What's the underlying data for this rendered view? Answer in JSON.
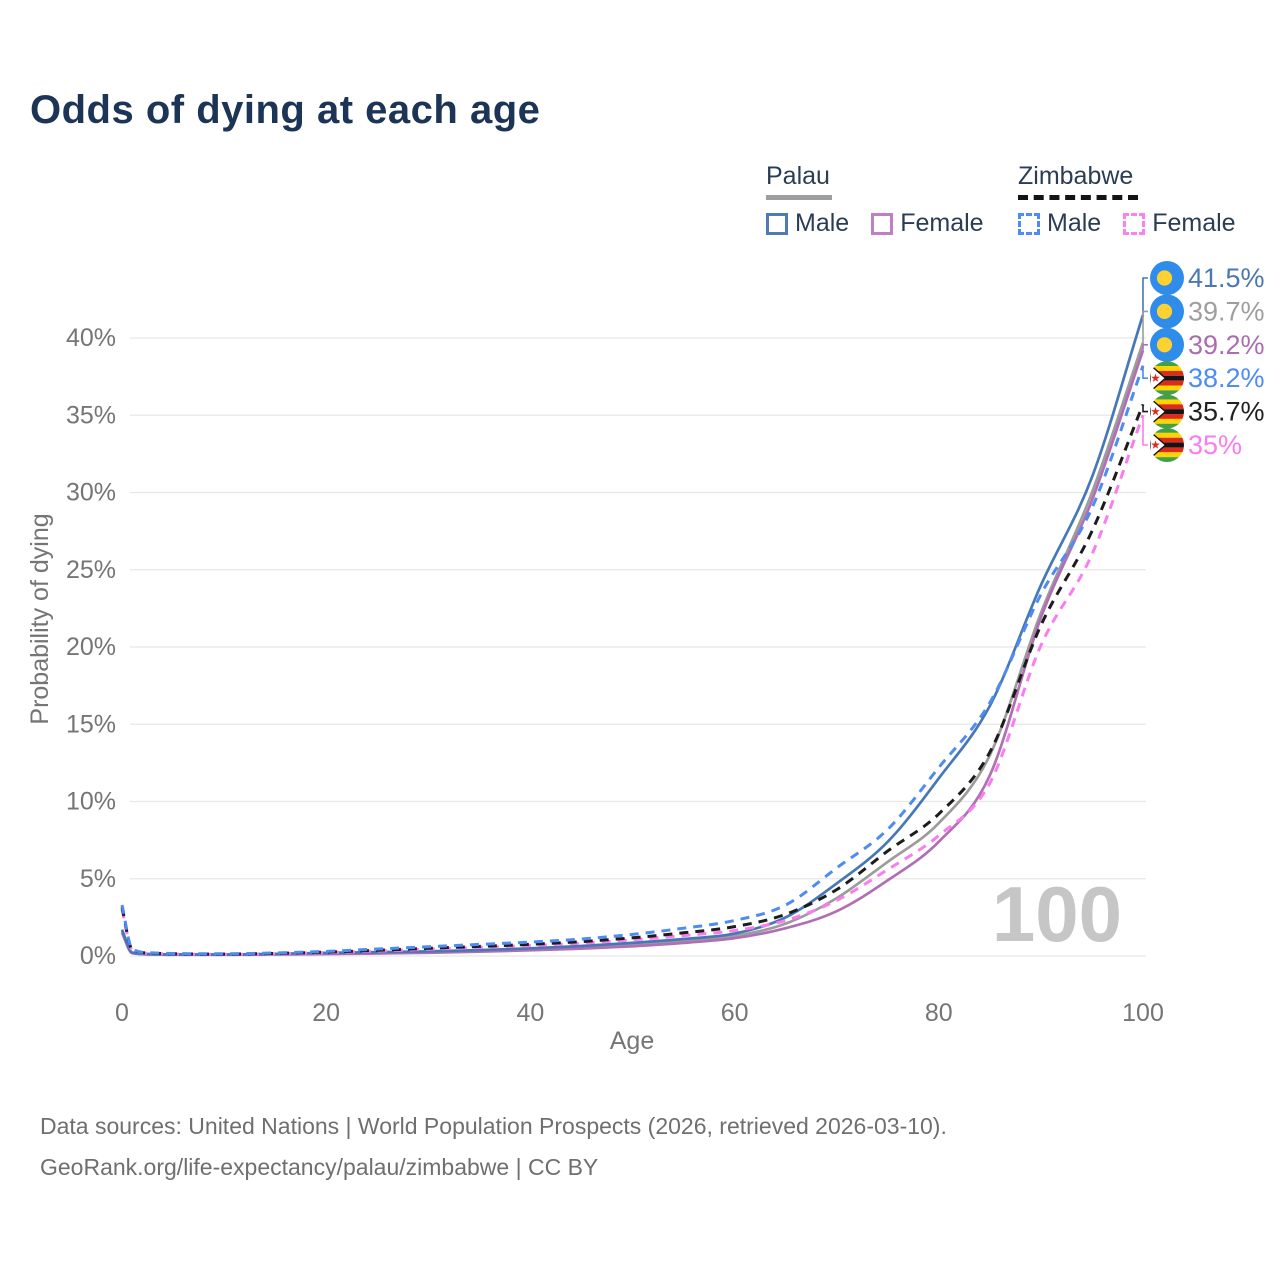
{
  "title": "Odds of dying at each age",
  "legend": {
    "palau": {
      "title": "Palau",
      "male_label": "Male",
      "female_label": "Female"
    },
    "zimbabwe": {
      "title": "Zimbabwe",
      "male_label": "Male",
      "female_label": "Female"
    }
  },
  "watermark": "100",
  "footer": {
    "line1": "Data sources: United Nations | World Population Prospects (2026, retrieved 2026-03-10).",
    "line2": "GeoRank.org/life-expectancy/palau/zimbabwe | CC BY"
  },
  "colors": {
    "title_text": "#1c3455",
    "axis_text": "#757575",
    "gridline": "#e7e7e7",
    "watermark": "#c6c6c6",
    "palau_underline": "#9e9e9e",
    "zimbabwe_underline": "#141414"
  },
  "chart_data": {
    "type": "line",
    "title": "Odds of dying at each age",
    "xlabel": "Age",
    "ylabel": "Probability of dying",
    "x_ticks": [
      0,
      20,
      40,
      60,
      80,
      100
    ],
    "y_ticks_percent": [
      0,
      5,
      10,
      15,
      20,
      25,
      30,
      35,
      40
    ],
    "xlim": [
      0,
      100
    ],
    "ylim_percent": [
      0,
      44
    ],
    "grid": "horizontal",
    "x_ages": [
      0,
      1,
      3,
      5,
      10,
      15,
      20,
      25,
      30,
      35,
      40,
      45,
      50,
      55,
      60,
      65,
      70,
      75,
      80,
      85,
      90,
      95,
      100
    ],
    "series": [
      {
        "name": "Palau total",
        "country": "Palau",
        "sex": "total",
        "style": "solid",
        "color": "#9c9c9c",
        "flag": "palau",
        "values": [
          1.6,
          0.2,
          0.11,
          0.09,
          0.09,
          0.12,
          0.17,
          0.21,
          0.26,
          0.33,
          0.43,
          0.56,
          0.75,
          0.97,
          1.3,
          2.1,
          3.75,
          6.1,
          8.6,
          13.0,
          22.2,
          30.0,
          39.7
        ],
        "end_label": "39.7%",
        "end_label_color": "#9e9e9e"
      },
      {
        "name": "Palau female",
        "country": "Palau",
        "sex": "female",
        "style": "solid",
        "color": "#b06fb4",
        "flag": "palau",
        "values": [
          1.5,
          0.18,
          0.1,
          0.08,
          0.08,
          0.1,
          0.13,
          0.16,
          0.21,
          0.28,
          0.37,
          0.48,
          0.63,
          0.85,
          1.15,
          1.8,
          2.9,
          4.9,
          7.4,
          11.7,
          21.9,
          29.5,
          39.2
        ],
        "end_label": "39.2%",
        "end_label_color": "#aa6db0"
      },
      {
        "name": "Palau male",
        "country": "Palau",
        "sex": "male",
        "style": "solid",
        "color": "#4678b8",
        "flag": "palau",
        "values": [
          1.7,
          0.22,
          0.12,
          0.1,
          0.1,
          0.14,
          0.2,
          0.25,
          0.3,
          0.38,
          0.5,
          0.65,
          0.85,
          1.1,
          1.45,
          2.5,
          4.7,
          7.4,
          11.5,
          16.2,
          24.0,
          31.0,
          41.5
        ],
        "end_label": "41.5%",
        "end_label_color": "#4a78b0"
      },
      {
        "name": "Zimbabwe female",
        "country": "Zimbabwe",
        "sex": "female",
        "style": "dashed",
        "color": "#fa7df0",
        "flag": "zimbabwe",
        "values": [
          3.0,
          0.4,
          0.17,
          0.13,
          0.11,
          0.15,
          0.22,
          0.32,
          0.44,
          0.55,
          0.68,
          0.83,
          1.05,
          1.32,
          1.65,
          2.3,
          3.6,
          5.6,
          7.8,
          11.2,
          20.1,
          26.0,
          35.0
        ],
        "end_label": "35%",
        "end_label_color": "#fb7bf0"
      },
      {
        "name": "Zimbabwe total",
        "country": "Zimbabwe",
        "sex": "total",
        "style": "dashed",
        "color": "#1c1c1c",
        "flag": "zimbabwe",
        "values": [
          3.15,
          0.42,
          0.18,
          0.14,
          0.12,
          0.17,
          0.25,
          0.37,
          0.5,
          0.62,
          0.76,
          0.93,
          1.18,
          1.5,
          1.9,
          2.7,
          4.3,
          6.8,
          9.2,
          13.2,
          21.4,
          27.5,
          35.7
        ],
        "end_label": "35.7%",
        "end_label_color": "#212121"
      },
      {
        "name": "Zimbabwe male",
        "country": "Zimbabwe",
        "sex": "male",
        "style": "dashed",
        "color": "#4d8bf5",
        "flag": "zimbabwe",
        "values": [
          3.3,
          0.45,
          0.2,
          0.16,
          0.14,
          0.2,
          0.3,
          0.45,
          0.6,
          0.75,
          0.9,
          1.1,
          1.4,
          1.8,
          2.3,
          3.3,
          5.7,
          8.2,
          12.2,
          16.4,
          23.4,
          29.0,
          38.2
        ],
        "end_label": "38.2%",
        "end_label_color": "#4d8bf5"
      }
    ],
    "current_age_indicator": "100"
  }
}
